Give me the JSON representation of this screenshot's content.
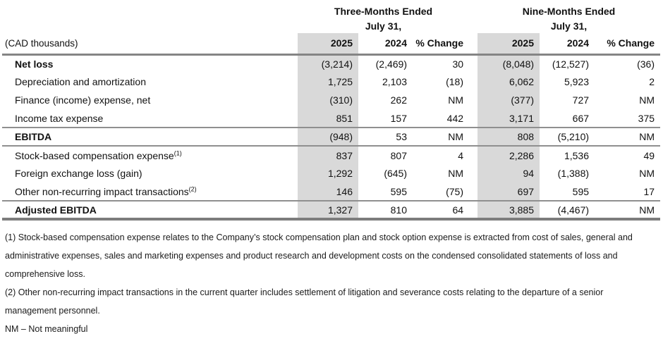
{
  "colors": {
    "shade": "#d9d9d9",
    "rule_heavy": "#858585",
    "rule_mid": "#8f8f8f",
    "rule_bottom": "#7d7d7d"
  },
  "table": {
    "unit_label": "(CAD thousands)",
    "groups": [
      {
        "title": "Three-Months Ended",
        "subtitle": "July 31,"
      },
      {
        "title": "Nine-Months Ended",
        "subtitle": "July 31,"
      }
    ],
    "columns": [
      "2025",
      "2024",
      "% Change",
      "2025",
      "2024",
      "% Change"
    ],
    "rows": [
      {
        "label": "Net loss",
        "sup": "",
        "values": [
          "(3,214)",
          "(2,469)",
          "30",
          "(8,048)",
          "(12,527)",
          "(36)"
        ]
      },
      {
        "label": "Depreciation and amortization",
        "sup": "",
        "values": [
          "1,725",
          "2,103",
          "(18)",
          "6,062",
          "5,923",
          "2"
        ]
      },
      {
        "label": "Finance (income) expense, net",
        "sup": "",
        "values": [
          "(310)",
          "262",
          "NM",
          "(377)",
          "727",
          "NM"
        ]
      },
      {
        "label": "Income tax expense",
        "sup": "",
        "values": [
          "851",
          "157",
          "442",
          "3,171",
          "667",
          "375"
        ]
      },
      {
        "label": "EBITDA",
        "sup": "",
        "values": [
          "(948)",
          "53",
          "NM",
          "808",
          "(5,210)",
          "NM"
        ]
      },
      {
        "label": "Stock-based compensation expense",
        "sup": "(1)",
        "values": [
          "837",
          "807",
          "4",
          "2,286",
          "1,536",
          "49"
        ]
      },
      {
        "label": "Foreign exchange loss (gain)",
        "sup": "",
        "values": [
          "1,292",
          "(645)",
          "NM",
          "94",
          "(1,388)",
          "NM"
        ]
      },
      {
        "label": "Other non-recurring impact transactions",
        "sup": "(2)",
        "values": [
          "146",
          "595",
          "(75)",
          "697",
          "595",
          "17"
        ]
      },
      {
        "label": "Adjusted EBITDA",
        "sup": "",
        "values": [
          "1,327",
          "810",
          "64",
          "3,885",
          "(4,467)",
          "NM"
        ]
      }
    ]
  },
  "footnotes": [
    "(1) Stock-based compensation expense relates to the Company’s stock compensation plan and stock option expense is extracted from cost of sales, general and administrative expenses, sales and marketing expenses and product research and development costs on the condensed consolidated statements of loss and comprehensive loss.",
    "(2) Other non-recurring impact transactions in the current quarter includes settlement of litigation and severance costs relating to the departure of a senior management personnel.",
    "NM – Not meaningful"
  ]
}
